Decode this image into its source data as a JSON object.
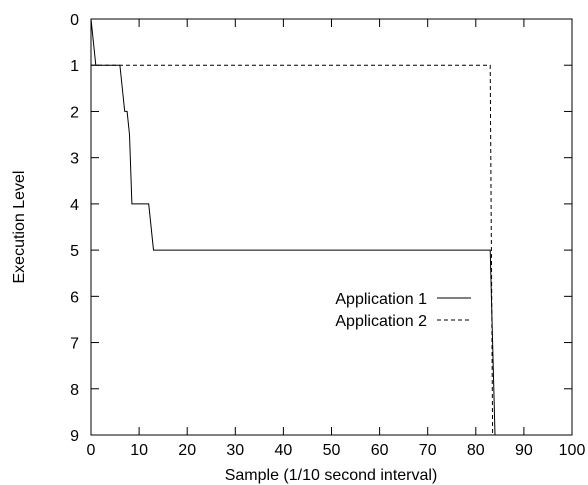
{
  "chart_data": {
    "type": "line",
    "title": "",
    "xlabel": "Sample (1/10 second interval)",
    "ylabel": "Execution Level",
    "xlim": [
      0,
      100
    ],
    "ylim": [
      9,
      0
    ],
    "y_inverted": true,
    "grid": false,
    "legend_position": "center-right",
    "x_ticks": [
      "0",
      "10",
      "20",
      "30",
      "40",
      "50",
      "60",
      "70",
      "80",
      "90",
      "100"
    ],
    "y_ticks": [
      "0",
      "1",
      "2",
      "3",
      "4",
      "5",
      "6",
      "7",
      "8",
      "9"
    ],
    "series": [
      {
        "name": "Application 1",
        "style": "solid",
        "color": "#000000",
        "x": [
          0,
          1,
          6,
          7,
          7.5,
          8,
          8.5,
          10.5,
          12,
          13,
          83,
          84
        ],
        "y": [
          0,
          1,
          1,
          2,
          2,
          2.5,
          4,
          4,
          4,
          5,
          5,
          9
        ]
      },
      {
        "name": "Application 2",
        "style": "dashed",
        "color": "#000000",
        "x": [
          0,
          1,
          83,
          83.5
        ],
        "y": [
          1,
          1,
          1,
          9
        ]
      }
    ]
  }
}
